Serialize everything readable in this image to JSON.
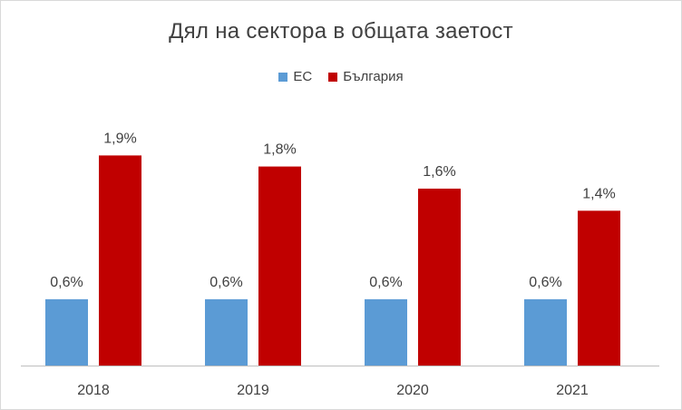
{
  "chart_data": {
    "type": "bar",
    "title": "Дял на сектора в общата заетост",
    "categories": [
      "2018",
      "2019",
      "2020",
      "2021"
    ],
    "series": [
      {
        "name": "ЕС",
        "values": [
          0.6,
          0.6,
          0.6,
          0.6
        ],
        "labels": [
          "0,6%",
          "0,6%",
          "0,6%",
          "0,6%"
        ],
        "color": "#5b9bd5"
      },
      {
        "name": "България",
        "values": [
          1.9,
          1.8,
          1.6,
          1.4
        ],
        "labels": [
          "1,9%",
          "1,8%",
          "1,6%",
          "1,4%"
        ],
        "color": "#c00000"
      }
    ],
    "ylim": [
      0,
      2.1
    ],
    "grid": false,
    "legend_position": "top"
  }
}
